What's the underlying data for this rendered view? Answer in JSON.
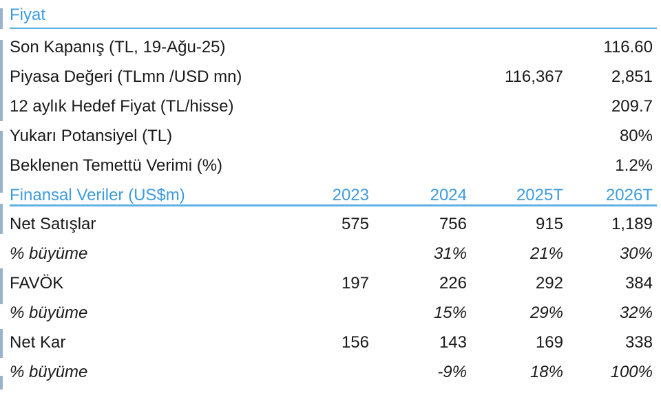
{
  "price_section": {
    "title": "Fiyat",
    "rows": [
      {
        "label": "Son Kapanış (TL, 19-Ağu-25)",
        "c3": "",
        "c4": "116.60"
      },
      {
        "label": "Piyasa Değeri (TLmn /USD mn)",
        "c3": "116,367",
        "c4": "2,851"
      },
      {
        "label": "12 aylık Hedef Fiyat (TL/hisse)",
        "c3": "",
        "c4": "209.7"
      },
      {
        "label": "Yukarı Potansiyel (TL)",
        "c3": "",
        "c4": "80%"
      },
      {
        "label": "Beklenen Temettü Verimi (%)",
        "c3": "",
        "c4": "1.2%"
      }
    ]
  },
  "financial_section": {
    "title": "Finansal Veriler (US$m)",
    "years": [
      "2023",
      "2024",
      "2025T",
      "2026T"
    ],
    "rows": [
      {
        "label": "Net Satışlar",
        "values": [
          "575",
          "756",
          "915",
          "1,189"
        ]
      },
      {
        "label": "% büyüme",
        "values": [
          "",
          "31%",
          "21%",
          "30%"
        ]
      },
      {
        "label": "FAVÖK",
        "values": [
          "197",
          "226",
          "292",
          "384"
        ]
      },
      {
        "label": "% büyüme",
        "values": [
          "",
          "15%",
          "29%",
          "32%"
        ]
      },
      {
        "label": "Net Kar",
        "values": [
          "156",
          "143",
          "169",
          "338"
        ]
      },
      {
        "label": "% büyüme",
        "values": [
          "",
          "-9%",
          "18%",
          "100%"
        ]
      }
    ]
  },
  "colors": {
    "accent": "#3d9be0",
    "rule": "#5fb0e5",
    "left_bar": "#9ab3cc"
  }
}
